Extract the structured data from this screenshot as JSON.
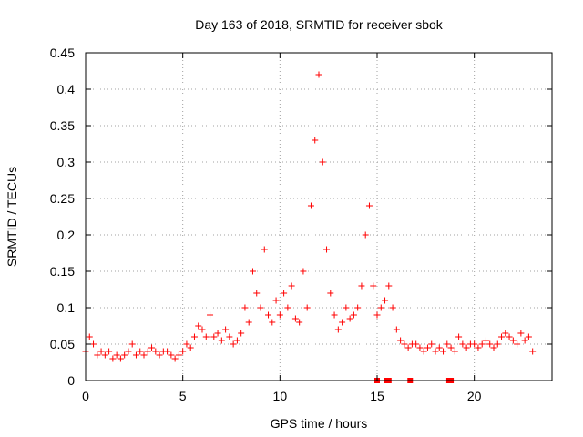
{
  "chart_data": {
    "type": "scatter",
    "title": "Day 163 of 2018, SRMTID for receiver sbok",
    "xlabel": "GPS time / hours",
    "ylabel": "SRMTID / TECUs",
    "xlim": [
      0,
      24
    ],
    "ylim": [
      0,
      0.45
    ],
    "xticks": [
      "0",
      "5",
      "10",
      "15",
      "20"
    ],
    "yticks": [
      "0",
      "0.05",
      "0.1",
      "0.15",
      "0.2",
      "0.25",
      "0.3",
      "0.35",
      "0.4",
      "0.45"
    ],
    "grid": true,
    "marker": "+",
    "color": "#ff0000",
    "series": [
      {
        "name": "SRMTID",
        "x": [
          0.0,
          0.2,
          0.4,
          0.6,
          0.8,
          1.0,
          1.2,
          1.4,
          1.6,
          1.8,
          2.0,
          2.2,
          2.4,
          2.6,
          2.8,
          3.0,
          3.2,
          3.4,
          3.6,
          3.8,
          4.0,
          4.2,
          4.4,
          4.6,
          4.8,
          5.0,
          5.2,
          5.4,
          5.6,
          5.8,
          6.0,
          6.2,
          6.4,
          6.6,
          6.8,
          7.0,
          7.2,
          7.4,
          7.6,
          7.8,
          8.0,
          8.2,
          8.4,
          8.6,
          8.8,
          9.0,
          9.2,
          9.4,
          9.6,
          9.8,
          10.0,
          10.2,
          10.4,
          10.6,
          10.8,
          11.0,
          11.2,
          11.4,
          11.6,
          11.8,
          12.0,
          12.2,
          12.4,
          12.6,
          12.8,
          13.0,
          13.2,
          13.4,
          13.6,
          13.8,
          14.0,
          14.2,
          14.4,
          14.6,
          14.8,
          15.0,
          15.2,
          15.4,
          15.6,
          15.8,
          16.0,
          16.2,
          16.4,
          16.6,
          16.8,
          17.0,
          17.2,
          17.4,
          17.6,
          17.8,
          18.0,
          18.2,
          18.4,
          18.6,
          18.8,
          19.0,
          19.2,
          19.4,
          19.6,
          19.8,
          20.0,
          20.2,
          20.4,
          20.6,
          20.8,
          21.0,
          21.2,
          21.4,
          21.6,
          21.8,
          22.0,
          22.2,
          22.4,
          22.6,
          22.8,
          23.0
        ],
        "y": [
          0.04,
          0.06,
          0.05,
          0.035,
          0.04,
          0.035,
          0.04,
          0.03,
          0.035,
          0.03,
          0.035,
          0.04,
          0.05,
          0.035,
          0.04,
          0.035,
          0.04,
          0.045,
          0.04,
          0.035,
          0.04,
          0.04,
          0.035,
          0.03,
          0.035,
          0.04,
          0.05,
          0.045,
          0.06,
          0.075,
          0.07,
          0.06,
          0.09,
          0.06,
          0.065,
          0.055,
          0.07,
          0.06,
          0.05,
          0.055,
          0.065,
          0.1,
          0.08,
          0.15,
          0.12,
          0.1,
          0.18,
          0.09,
          0.08,
          0.11,
          0.09,
          0.12,
          0.1,
          0.13,
          0.085,
          0.08,
          0.15,
          0.1,
          0.24,
          0.33,
          0.42,
          0.3,
          0.18,
          0.12,
          0.09,
          0.07,
          0.08,
          0.1,
          0.085,
          0.09,
          0.1,
          0.13,
          0.2,
          0.24,
          0.13,
          0.09,
          0.1,
          0.11,
          0.13,
          0.1,
          0.07,
          0.055,
          0.05,
          0.045,
          0.05,
          0.05,
          0.045,
          0.04,
          0.045,
          0.05,
          0.04,
          0.045,
          0.04,
          0.05,
          0.045,
          0.04,
          0.06,
          0.05,
          0.045,
          0.05,
          0.05,
          0.045,
          0.05,
          0.055,
          0.05,
          0.045,
          0.05,
          0.06,
          0.065,
          0.06,
          0.055,
          0.05,
          0.065,
          0.055,
          0.06,
          0.04
        ]
      }
    ],
    "xerror_marks": [
      15.0,
      15.5,
      15.6,
      16.7,
      18.7,
      18.8
    ]
  }
}
